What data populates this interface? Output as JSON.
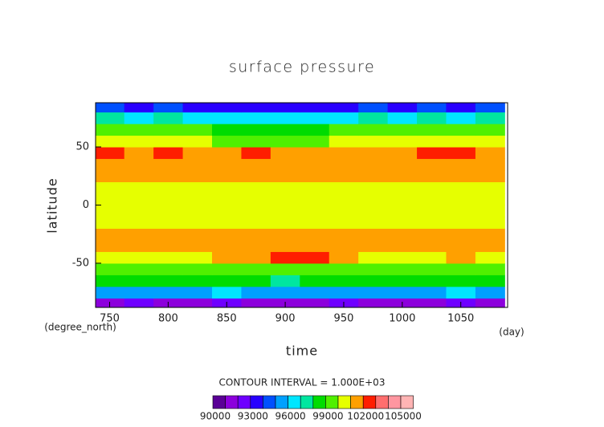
{
  "chart_data": {
    "type": "heatmap",
    "title": "surface pressure",
    "xlabel": "time",
    "ylabel": "latitude",
    "xunit": "(day)",
    "yunit": "(degree_north)",
    "annotation": "CONTOUR INTERVAL = 1.000E+03",
    "xlim": [
      738,
      1090
    ],
    "ylim": [
      -88,
      88
    ],
    "xticks": [
      750,
      800,
      850,
      900,
      950,
      1000,
      1050
    ],
    "yticks": [
      -50,
      0,
      50
    ],
    "x": [
      750,
      775,
      800,
      825,
      850,
      875,
      900,
      925,
      950,
      975,
      1000,
      1025,
      1050,
      1075
    ],
    "y": [
      -85,
      -75,
      -65,
      -55,
      -45,
      -35,
      -25,
      -15,
      -5,
      5,
      15,
      25,
      35,
      45,
      55,
      65,
      75,
      85
    ],
    "cell_width": 25,
    "cell_height": 10,
    "z": [
      [
        91500,
        92000,
        91200,
        91800,
        92200,
        91600,
        91000,
        91400,
        92000,
        91800,
        91300,
        91700,
        92100,
        91500
      ],
      [
        95500,
        95800,
        95200,
        95600,
        96000,
        95400,
        95100,
        95300,
        95900,
        95600,
        95200,
        95700,
        96000,
        95500
      ],
      [
        98200,
        98400,
        98000,
        98300,
        98500,
        98100,
        97900,
        98000,
        98400,
        98200,
        98000,
        98300,
        98500,
        98200
      ],
      [
        99600,
        99700,
        99500,
        99600,
        99800,
        99500,
        99400,
        99500,
        99700,
        99600,
        99500,
        99600,
        99800,
        99600
      ],
      [
        100800,
        100900,
        100700,
        100800,
        101000,
        101200,
        102300,
        102200,
        101100,
        100800,
        100700,
        100800,
        101000,
        100800
      ],
      [
        101200,
        101300,
        101100,
        101200,
        101300,
        101200,
        101400,
        101300,
        101200,
        101100,
        101200,
        101200,
        101300,
        101200
      ],
      [
        101100,
        101200,
        101000,
        101100,
        101200,
        101000,
        101100,
        101200,
        101000,
        101100,
        101000,
        101100,
        101200,
        101100
      ],
      [
        100600,
        100700,
        100500,
        100600,
        100700,
        100500,
        100600,
        100600,
        100500,
        100600,
        100500,
        100600,
        100700,
        100600
      ],
      [
        100400,
        100500,
        100400,
        100500,
        100400,
        100400,
        100500,
        100400,
        100500,
        100400,
        100500,
        100400,
        100500,
        100400
      ],
      [
        100500,
        100400,
        100500,
        100400,
        100500,
        100500,
        100400,
        100500,
        100400,
        100500,
        100400,
        100500,
        100400,
        100500
      ],
      [
        100600,
        100700,
        100600,
        100500,
        100700,
        100600,
        100500,
        100600,
        100700,
        100600,
        100500,
        100600,
        100700,
        100600
      ],
      [
        101200,
        101300,
        101100,
        101200,
        101300,
        101100,
        101200,
        101300,
        101100,
        101200,
        101100,
        101200,
        101300,
        101200
      ],
      [
        101500,
        101600,
        101400,
        101500,
        101600,
        101400,
        101500,
        101600,
        101400,
        101500,
        101400,
        101500,
        101600,
        101500
      ],
      [
        102200,
        101800,
        102100,
        101700,
        101600,
        102000,
        101500,
        101400,
        101600,
        101700,
        101800,
        102100,
        102000,
        101800
      ],
      [
        100200,
        100000,
        100300,
        100100,
        99900,
        99800,
        99600,
        99900,
        100100,
        100200,
        100000,
        100300,
        100100,
        100200
      ],
      [
        99200,
        99000,
        99300,
        99100,
        98800,
        98700,
        98600,
        98900,
        99100,
        99200,
        99000,
        99300,
        99100,
        99200
      ],
      [
        97000,
        96800,
        97200,
        96900,
        96600,
        96500,
        96300,
        96700,
        96900,
        97100,
        96800,
        97200,
        96900,
        97000
      ],
      [
        94000,
        93500,
        94200,
        93800,
        93200,
        93600,
        93000,
        93400,
        93900,
        94100,
        93600,
        94200,
        93800,
        94000
      ]
    ],
    "colorbar": {
      "levels": [
        90000,
        91000,
        92000,
        93000,
        94000,
        95000,
        96000,
        97000,
        98000,
        99000,
        100000,
        101000,
        102000,
        103000,
        104000,
        105000
      ],
      "colors": [
        "#5a0096",
        "#8c00dc",
        "#6e00ff",
        "#2800ff",
        "#0050ff",
        "#00a0ff",
        "#00e6ff",
        "#00e6a0",
        "#00dc00",
        "#50f000",
        "#e6ff00",
        "#ffa000",
        "#ff1e00",
        "#ff6e6e",
        "#ff96a0",
        "#ffb4b4"
      ],
      "ticks": [
        90000,
        93000,
        96000,
        99000,
        102000,
        105000
      ]
    }
  }
}
